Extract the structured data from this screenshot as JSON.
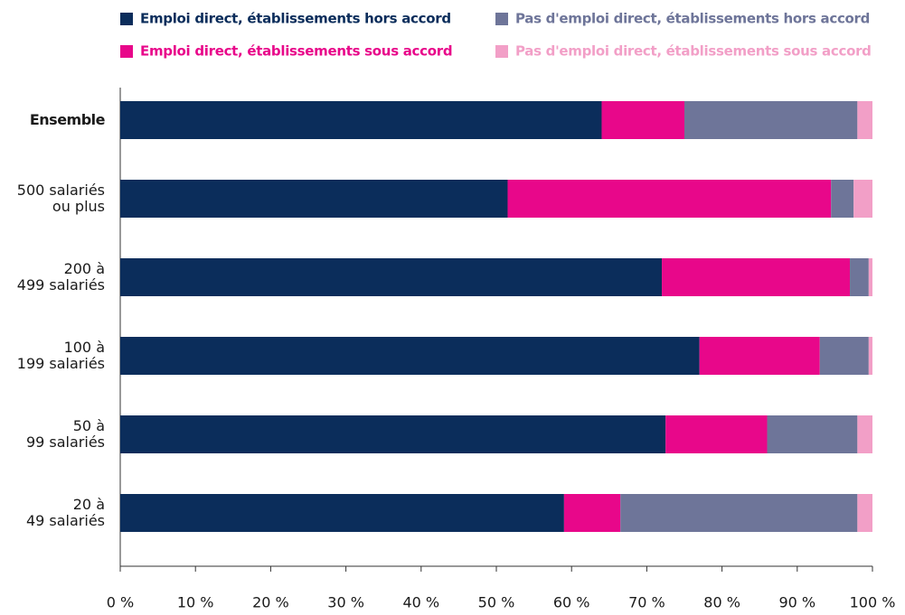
{
  "chart_data": {
    "type": "stacked_barh",
    "categories": [
      [
        "Ensemble"
      ],
      [
        "500 salariés",
        "ou plus"
      ],
      [
        "200 à",
        "499 salariés"
      ],
      [
        "100 à",
        "199 salariés"
      ],
      [
        "50 à",
        "99 salariés"
      ],
      [
        "20 à",
        "49 salariés"
      ]
    ],
    "series": [
      {
        "name": "Emploi direct, établissements hors accord",
        "color": "#0b2d5b",
        "values": [
          64,
          51.5,
          72,
          77,
          72.5,
          59
        ]
      },
      {
        "name": "Emploi direct, établissements sous accord",
        "color": "#e8078a",
        "values": [
          11,
          43,
          25,
          16,
          13.5,
          7.5
        ]
      },
      {
        "name": "Pas d'emploi direct, établissements hors accord",
        "color": "#6e7599",
        "values": [
          23,
          3,
          2.5,
          6.5,
          12,
          31.5
        ]
      },
      {
        "name": "Pas d'emploi direct, établissements sous accord",
        "color": "#f29fc7",
        "values": [
          2,
          2.5,
          0.5,
          0.5,
          2,
          2
        ]
      }
    ],
    "xlim": [
      0,
      100
    ],
    "xticks": [
      {
        "value": 0,
        "label": "0 %"
      },
      {
        "value": 10,
        "label": "10 %"
      },
      {
        "value": 20,
        "label": "20 %"
      },
      {
        "value": 30,
        "label": "30 %"
      },
      {
        "value": 40,
        "label": "40 %"
      },
      {
        "value": 50,
        "label": "50 %"
      },
      {
        "value": 60,
        "label": "60 %"
      },
      {
        "value": 70,
        "label": "70 %"
      },
      {
        "value": 80,
        "label": "80 %"
      },
      {
        "value": 90,
        "label": "90 %"
      },
      {
        "value": 100,
        "label": "100 %"
      }
    ],
    "legend": "top",
    "grid": false
  }
}
